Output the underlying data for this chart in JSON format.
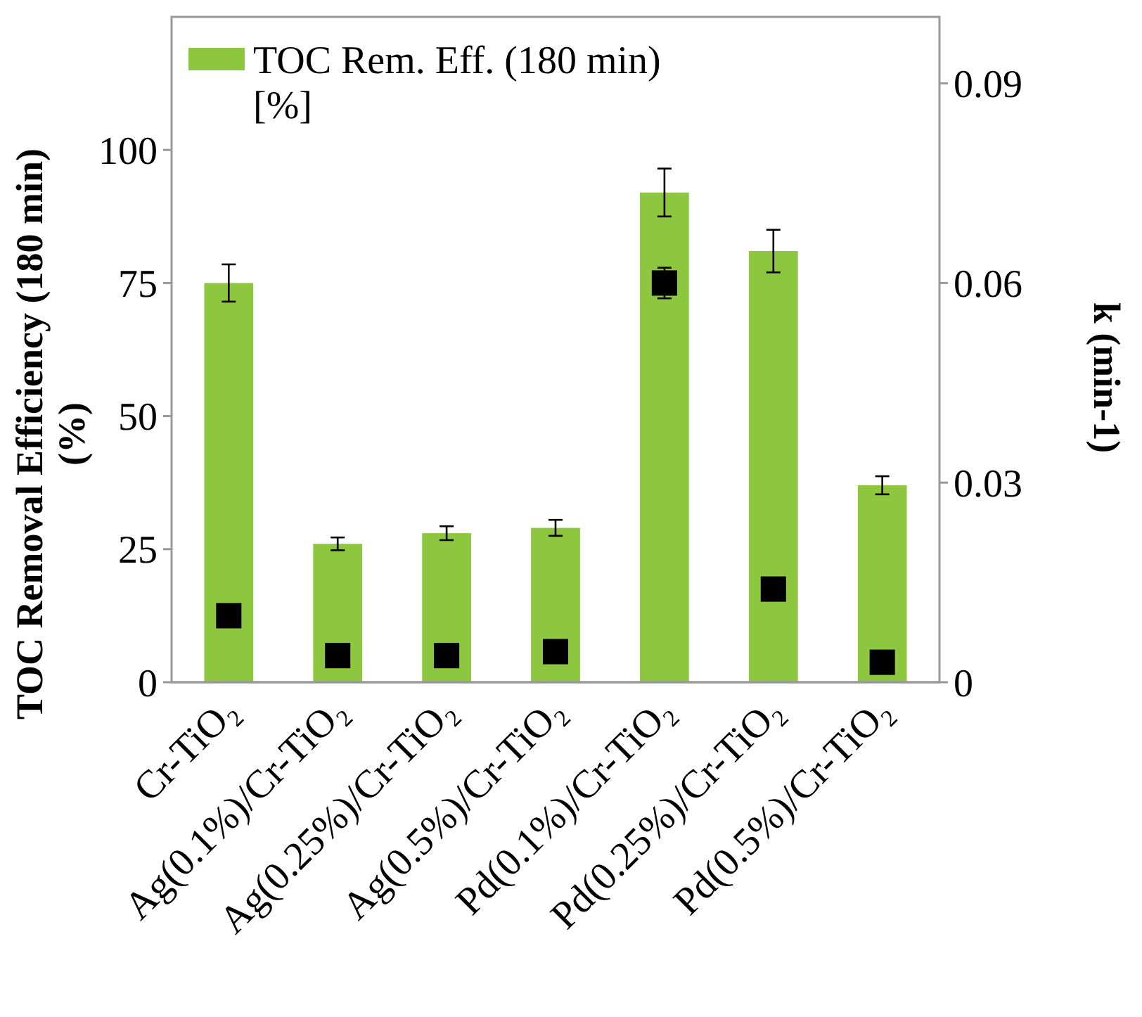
{
  "chart_data": {
    "type": "bar",
    "categories": [
      "Cr-TiO₂",
      "Ag(0.1%)/Cr-TiO₂",
      "Ag(0.25%)/Cr-TiO₂",
      "Ag(0.5%)/Cr-TiO₂",
      "Pd(0.1%)/Cr-TiO₂",
      "Pd(0.25%)/Cr-TiO₂",
      "Pd(0.5%)/Cr-TiO₂"
    ],
    "series": [
      {
        "name": "TOC Rem. Eff. (180 min) [%]",
        "color": "#8dc63f",
        "values": [
          75,
          26,
          28,
          29,
          92,
          81,
          37
        ],
        "errors": [
          3.5,
          1.2,
          1.3,
          1.5,
          4.5,
          4,
          1.7
        ]
      },
      {
        "type": "scatter",
        "axis": "y2",
        "color": "#000000",
        "marker": "square",
        "values": [
          0.01,
          0.004,
          0.004,
          0.0046,
          0.06,
          0.014,
          0.003
        ],
        "errors": [
          null,
          null,
          null,
          null,
          0.0023,
          null,
          null
        ]
      }
    ],
    "ylabel": "TOC Removal Efficiency (180 min) (%)",
    "y2label": "k (min-1)",
    "ylim": [
      0,
      125
    ],
    "yticks": [
      0,
      25,
      50,
      75,
      100
    ],
    "y2lim": [
      0,
      0.1
    ],
    "y2ticks": [
      0,
      0.03,
      0.06,
      0.09
    ],
    "legend": "top left",
    "grid": false
  }
}
